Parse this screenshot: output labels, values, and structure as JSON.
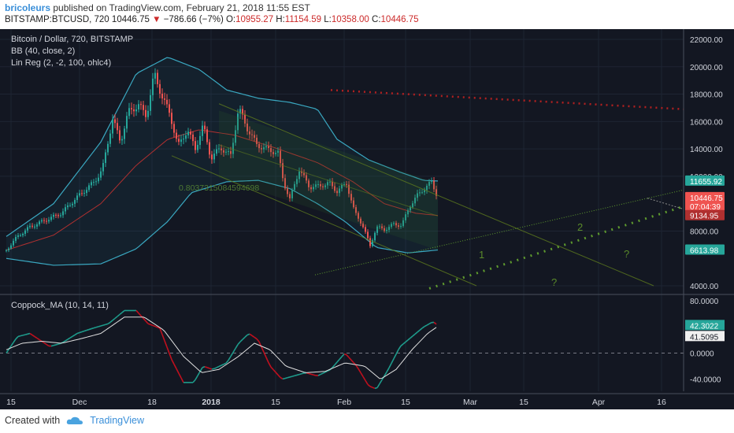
{
  "header": {
    "publisher": "bricoleurs",
    "published_text": "published on TradingView.com, February 21, 2018 11:55 EST",
    "symbol": "BITSTAMP:BTCUSD, 720",
    "last": "10446.75",
    "change_arrow": "▼",
    "change": "−786.66 (−7%)",
    "o_label": "O:",
    "o_val": "10955.27",
    "h_label": "H:",
    "h_val": "11154.59",
    "l_label": "L:",
    "l_val": "10358.00",
    "c_label": "C:",
    "c_val": "10446.75"
  },
  "legend": {
    "title": "Bitcoin / Dollar, 720, BITSTAMP",
    "bb": "BB (40, close, 2)",
    "linreg": "Lin Reg (2, -2, 100, ohlc4)",
    "corr_value": "0.8037315084594698",
    "coppock": "Coppock_MA (10, 14, 11)"
  },
  "annotations": {
    "wave1": "1",
    "wave2": "2",
    "q1": "?",
    "q2": "?"
  },
  "footer": {
    "created_with": "Created with",
    "brand": "TradingView"
  },
  "colors": {
    "background": "#131722",
    "up": "#26a69a",
    "down": "#ef5350",
    "bb_band": "#3aa8c1",
    "bb_basis": "#b03030",
    "grid": "#1e2433",
    "coppock": "#1e9c8c",
    "coppock_ma": "#e0e0e0"
  },
  "chart_data": {
    "type": "candlestick",
    "symbol": "BTCUSD",
    "timeframe": "720",
    "price_axis": {
      "ticks": [
        22000,
        20000,
        18000,
        16000,
        14000,
        12000,
        8000,
        4000
      ],
      "tick_labels": [
        "22000.00",
        "20000.00",
        "18000.00",
        "16000.00",
        "14000.00",
        "12000.00",
        "8000.00",
        "4000.00"
      ]
    },
    "price_badges": [
      {
        "label": "11655.92",
        "value": 11655.92,
        "color": "#26a69a"
      },
      {
        "label": "10446.75",
        "value": 10446.75,
        "color": "#ef5350",
        "sub": "07:04:39"
      },
      {
        "label": "9134.95",
        "value": 9134.95,
        "color": "#b03030"
      },
      {
        "label": "6613.98",
        "value": 6613.98,
        "color": "#26a69a"
      }
    ],
    "time_axis": {
      "labels": [
        "15",
        "Dec",
        "18",
        "2018",
        "15",
        "Feb",
        "15",
        "Mar",
        "15",
        "Apr",
        "16"
      ]
    },
    "oscillator": {
      "name": "Coppock_MA",
      "ticks": [
        80,
        0,
        -40
      ],
      "tick_labels": [
        "80.0000",
        "0.0000",
        "-40.0000"
      ],
      "badges": [
        {
          "label": "42.3022",
          "color": "#26a69a"
        },
        {
          "label": "41.5095",
          "color": "#f0f0f0"
        }
      ]
    },
    "close_path": [
      {
        "t": 0,
        "p": 6600
      },
      {
        "t": 14,
        "p": 7600
      },
      {
        "t": 30,
        "p": 8300
      },
      {
        "t": 50,
        "p": 8800
      },
      {
        "t": 70,
        "p": 9300
      },
      {
        "t": 85,
        "p": 10200
      },
      {
        "t": 100,
        "p": 11000
      },
      {
        "t": 112,
        "p": 11600
      },
      {
        "t": 122,
        "p": 12500
      },
      {
        "t": 135,
        "p": 16200
      },
      {
        "t": 145,
        "p": 14500
      },
      {
        "t": 155,
        "p": 16700
      },
      {
        "t": 168,
        "p": 17200
      },
      {
        "t": 178,
        "p": 16400
      },
      {
        "t": 188,
        "p": 19500
      },
      {
        "t": 198,
        "p": 17800
      },
      {
        "t": 208,
        "p": 16500
      },
      {
        "t": 218,
        "p": 14200
      },
      {
        "t": 230,
        "p": 15400
      },
      {
        "t": 240,
        "p": 14000
      },
      {
        "t": 250,
        "p": 15700
      },
      {
        "t": 260,
        "p": 13300
      },
      {
        "t": 272,
        "p": 14100
      },
      {
        "t": 285,
        "p": 13500
      },
      {
        "t": 295,
        "p": 17000
      },
      {
        "t": 305,
        "p": 15600
      },
      {
        "t": 318,
        "p": 14300
      },
      {
        "t": 330,
        "p": 14000
      },
      {
        "t": 345,
        "p": 13700
      },
      {
        "t": 352,
        "p": 11600
      },
      {
        "t": 360,
        "p": 10300
      },
      {
        "t": 372,
        "p": 12500
      },
      {
        "t": 385,
        "p": 11200
      },
      {
        "t": 398,
        "p": 11300
      },
      {
        "t": 410,
        "p": 11500
      },
      {
        "t": 420,
        "p": 10900
      },
      {
        "t": 432,
        "p": 11500
      },
      {
        "t": 442,
        "p": 9400
      },
      {
        "t": 452,
        "p": 8500
      },
      {
        "t": 462,
        "p": 6900
      },
      {
        "t": 470,
        "p": 8300
      },
      {
        "t": 480,
        "p": 8100
      },
      {
        "t": 492,
        "p": 8500
      },
      {
        "t": 502,
        "p": 8400
      },
      {
        "t": 512,
        "p": 9800
      },
      {
        "t": 522,
        "p": 10600
      },
      {
        "t": 532,
        "p": 11200
      },
      {
        "t": 540,
        "p": 11550
      },
      {
        "t": 548,
        "p": 10450
      }
    ],
    "bb_upper": [
      {
        "t": 0,
        "p": 7600
      },
      {
        "t": 60,
        "p": 10000
      },
      {
        "t": 120,
        "p": 14500
      },
      {
        "t": 165,
        "p": 19500
      },
      {
        "t": 205,
        "p": 20700
      },
      {
        "t": 245,
        "p": 19800
      },
      {
        "t": 280,
        "p": 18300
      },
      {
        "t": 320,
        "p": 17700
      },
      {
        "t": 360,
        "p": 17400
      },
      {
        "t": 395,
        "p": 16900
      },
      {
        "t": 420,
        "p": 14700
      },
      {
        "t": 460,
        "p": 13200
      },
      {
        "t": 500,
        "p": 12300
      },
      {
        "t": 530,
        "p": 11700
      },
      {
        "t": 548,
        "p": 11655
      }
    ],
    "bb_lower": [
      {
        "t": 0,
        "p": 6000
      },
      {
        "t": 60,
        "p": 5500
      },
      {
        "t": 120,
        "p": 5600
      },
      {
        "t": 165,
        "p": 6700
      },
      {
        "t": 205,
        "p": 8700
      },
      {
        "t": 235,
        "p": 10800
      },
      {
        "t": 280,
        "p": 11600
      },
      {
        "t": 320,
        "p": 11700
      },
      {
        "t": 360,
        "p": 11100
      },
      {
        "t": 395,
        "p": 10000
      },
      {
        "t": 430,
        "p": 8700
      },
      {
        "t": 470,
        "p": 6800
      },
      {
        "t": 510,
        "p": 6400
      },
      {
        "t": 548,
        "p": 6614
      }
    ],
    "bb_basis": [
      {
        "t": 0,
        "p": 6600
      },
      {
        "t": 60,
        "p": 7700
      },
      {
        "t": 120,
        "p": 10000
      },
      {
        "t": 165,
        "p": 12800
      },
      {
        "t": 205,
        "p": 14700
      },
      {
        "t": 245,
        "p": 15400
      },
      {
        "t": 290,
        "p": 15000
      },
      {
        "t": 340,
        "p": 14100
      },
      {
        "t": 395,
        "p": 13000
      },
      {
        "t": 440,
        "p": 11600
      },
      {
        "t": 480,
        "p": 10000
      },
      {
        "t": 520,
        "p": 9300
      },
      {
        "t": 548,
        "p": 9135
      }
    ],
    "coppock_path": [
      {
        "t": 0,
        "v": 0
      },
      {
        "t": 14,
        "v": 25
      },
      {
        "t": 30,
        "v": 30
      },
      {
        "t": 55,
        "v": 10
      },
      {
        "t": 70,
        "v": 15
      },
      {
        "t": 90,
        "v": 30
      },
      {
        "t": 110,
        "v": 38
      },
      {
        "t": 130,
        "v": 45
      },
      {
        "t": 150,
        "v": 65
      },
      {
        "t": 165,
        "v": 65
      },
      {
        "t": 180,
        "v": 45
      },
      {
        "t": 195,
        "v": 38
      },
      {
        "t": 210,
        "v": -10
      },
      {
        "t": 225,
        "v": -45
      },
      {
        "t": 238,
        "v": -45
      },
      {
        "t": 250,
        "v": -20
      },
      {
        "t": 262,
        "v": -25
      },
      {
        "t": 280,
        "v": -15
      },
      {
        "t": 295,
        "v": 15
      },
      {
        "t": 308,
        "v": 30
      },
      {
        "t": 320,
        "v": 20
      },
      {
        "t": 335,
        "v": -20
      },
      {
        "t": 350,
        "v": -40
      },
      {
        "t": 365,
        "v": -35
      },
      {
        "t": 380,
        "v": -30
      },
      {
        "t": 395,
        "v": -35
      },
      {
        "t": 412,
        "v": -25
      },
      {
        "t": 430,
        "v": 0
      },
      {
        "t": 445,
        "v": -20
      },
      {
        "t": 460,
        "v": -50
      },
      {
        "t": 470,
        "v": -55
      },
      {
        "t": 485,
        "v": -25
      },
      {
        "t": 500,
        "v": 10
      },
      {
        "t": 515,
        "v": 25
      },
      {
        "t": 530,
        "v": 40
      },
      {
        "t": 542,
        "v": 48
      },
      {
        "t": 548,
        "v": 42
      }
    ],
    "coppock_ma_path": [
      {
        "t": 0,
        "v": 5
      },
      {
        "t": 20,
        "v": 15
      },
      {
        "t": 45,
        "v": 18
      },
      {
        "t": 70,
        "v": 15
      },
      {
        "t": 95,
        "v": 22
      },
      {
        "t": 120,
        "v": 30
      },
      {
        "t": 150,
        "v": 55
      },
      {
        "t": 175,
        "v": 55
      },
      {
        "t": 200,
        "v": 35
      },
      {
        "t": 225,
        "v": -5
      },
      {
        "t": 248,
        "v": -30
      },
      {
        "t": 270,
        "v": -25
      },
      {
        "t": 295,
        "v": -5
      },
      {
        "t": 315,
        "v": 15
      },
      {
        "t": 335,
        "v": 5
      },
      {
        "t": 355,
        "v": -20
      },
      {
        "t": 380,
        "v": -30
      },
      {
        "t": 405,
        "v": -28
      },
      {
        "t": 430,
        "v": -15
      },
      {
        "t": 455,
        "v": -20
      },
      {
        "t": 475,
        "v": -40
      },
      {
        "t": 495,
        "v": -25
      },
      {
        "t": 515,
        "v": 5
      },
      {
        "t": 535,
        "v": 30
      },
      {
        "t": 548,
        "v": 41
      }
    ],
    "grid": true
  }
}
